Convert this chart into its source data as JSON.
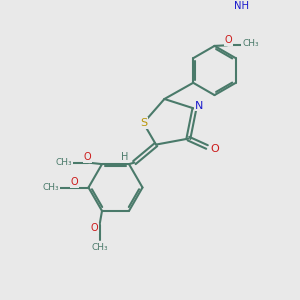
{
  "bg_color": "#e9e9e9",
  "bond_color": "#4a7a6a",
  "bond_lw": 1.5,
  "S_color": "#b8960a",
  "N_color": "#1a1acc",
  "O_color": "#cc1a1a",
  "H_color": "#4a7a6a",
  "figsize": [
    3.0,
    3.0
  ],
  "dpi": 100,
  "xlim": [
    0,
    10
  ],
  "ylim": [
    0,
    10
  ]
}
